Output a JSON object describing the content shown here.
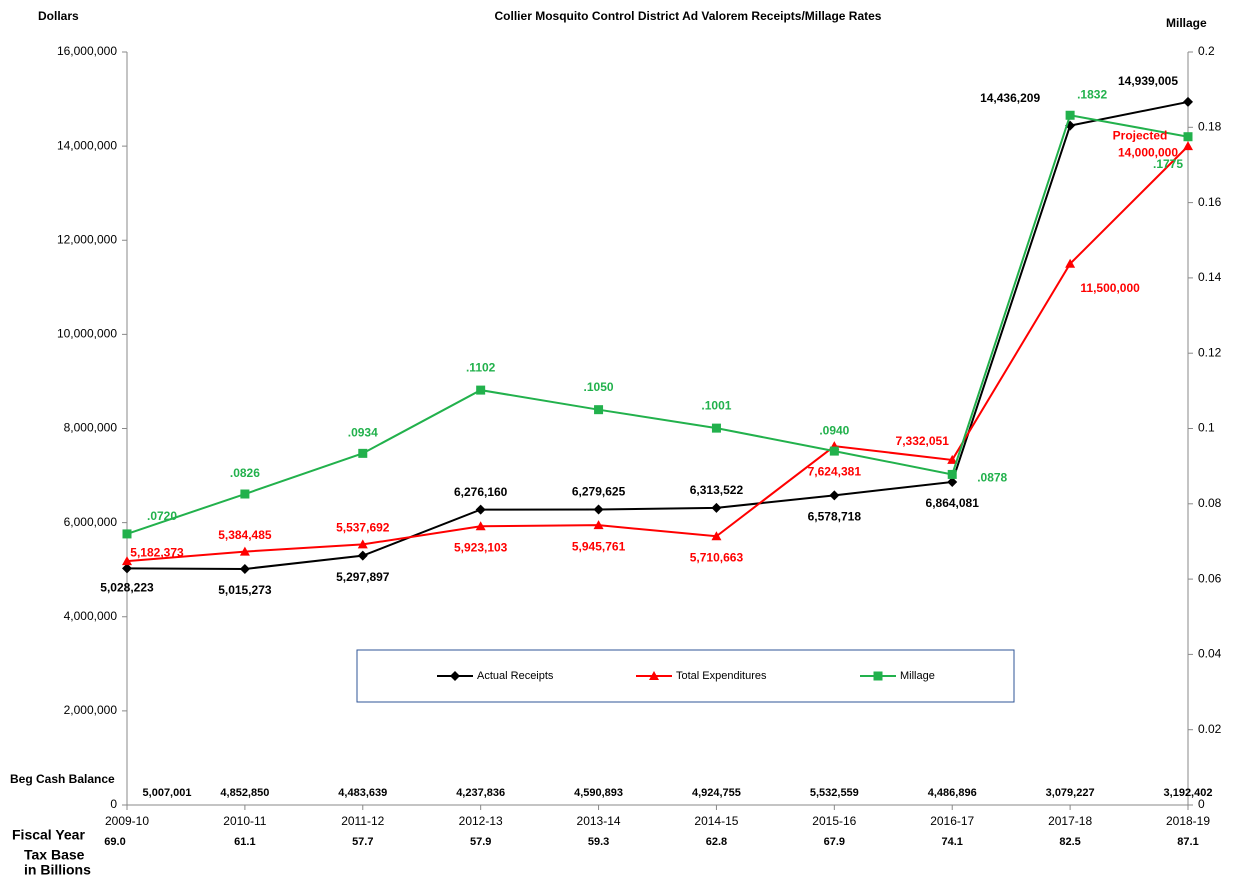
{
  "chart_data": {
    "type": "line",
    "title": "Collier Mosquito Control District Ad Valorem Receipts/Millage Rates",
    "y_label": "Dollars",
    "y2_label": "Millage",
    "x_label": "Fiscal Year",
    "categories": [
      "2009-10",
      "2010-11",
      "2011-12",
      "2012-13",
      "2013-14",
      "2014-15",
      "2015-16",
      "2016-17",
      "2017-18",
      "2018-19"
    ],
    "series": [
      {
        "name": "Actual Receipts",
        "color": "#000000",
        "marker": "diamond",
        "values": [
          5028223,
          5015273,
          5297897,
          6276160,
          6279625,
          6313522,
          6578718,
          6864081,
          14436209,
          14939005
        ],
        "value_labels": [
          "5,028,223",
          "5,015,273",
          "5,297,897",
          "6,276,160",
          "6,279,625",
          "6,313,522",
          "6,578,718",
          "6,864,081",
          "14,436,209",
          "14,939,005"
        ]
      },
      {
        "name": "Total Expenditures",
        "color": "#ff0000",
        "marker": "triangle",
        "values": [
          5182373,
          5384485,
          5537692,
          5923103,
          5945761,
          5710663,
          7624381,
          7332051,
          11500000,
          14000000
        ],
        "value_labels": [
          "5,182,373",
          "5,384,485",
          "5,537,692",
          "5,923,103",
          "5,945,761",
          "5,710,663",
          "7,624,381",
          "7,332,051",
          "11,500,000",
          "14,000,000"
        ]
      },
      {
        "name": "Millage",
        "color": "#22b14c",
        "marker": "square",
        "axis": "y2",
        "values": [
          0.072,
          0.0826,
          0.0934,
          0.1102,
          0.105,
          0.1001,
          0.094,
          0.0878,
          0.1832,
          0.1775
        ],
        "value_labels": [
          ".0720",
          ".0826",
          ".0934",
          ".1102",
          ".1050",
          ".1001",
          ".0940",
          ".0878",
          ".1832",
          ".1775"
        ]
      }
    ],
    "annotation": "Projected",
    "ylim": [
      0,
      16000000
    ],
    "yticks": [
      0,
      {
        "value": 2000000,
        "label": "2,000,000"
      },
      {
        "value": 4000000,
        "label": "4,000,000"
      },
      {
        "value": 6000000,
        "label": "6,000,000"
      },
      {
        "value": 8000000,
        "label": "8,000,000"
      },
      {
        "value": 10000000,
        "label": "10,000,000"
      },
      {
        "value": 12000000,
        "label": "12,000,000"
      },
      {
        "value": 14000000,
        "label": "14,000,000"
      },
      {
        "value": 16000000,
        "label": "16,000,000"
      }
    ],
    "y2lim": [
      0,
      0.2
    ],
    "y2ticks": [
      0,
      0.02,
      0.04,
      0.06,
      0.08,
      0.1,
      0.12,
      0.14,
      0.16,
      0.18,
      0.2
    ],
    "beg_cash_label": "Beg Cash Balance",
    "beg_cash": [
      "5,007,001",
      "4,852,850",
      "4,483,639",
      "4,237,836",
      "4,590,893",
      "4,924,755",
      "5,532,559",
      "4,486,896",
      "3,079,227",
      "3,192,402"
    ],
    "tax_base_label": [
      "Tax Base",
      "in Billions"
    ],
    "tax_base": [
      "69.0",
      "61.1",
      "57.7",
      "57.9",
      "59.3",
      "62.8",
      "67.9",
      "74.1",
      "82.5",
      "87.1"
    ],
    "legend": "bottom-center"
  }
}
